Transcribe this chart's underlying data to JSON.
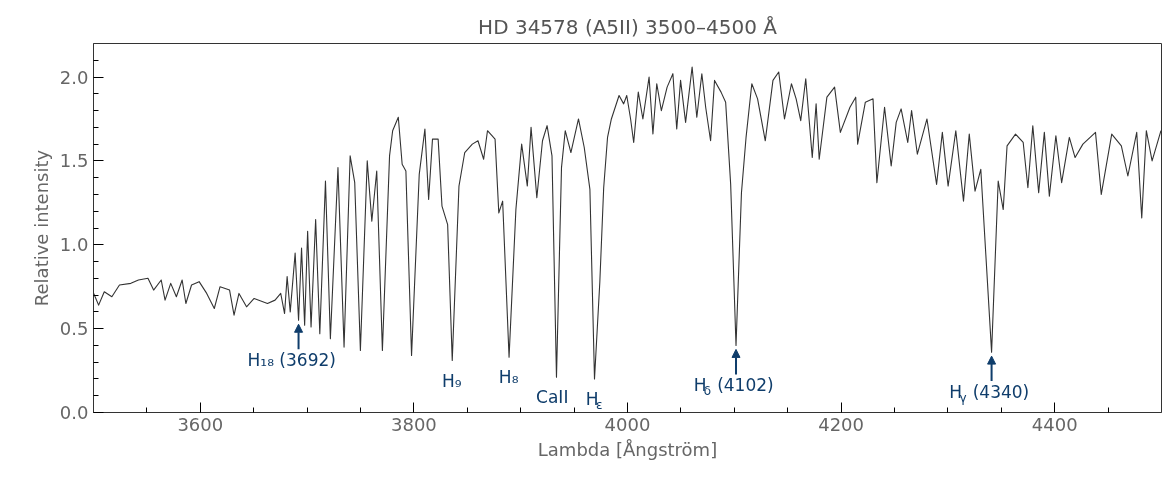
{
  "chart_data": {
    "type": "line",
    "title": "HD 34578 (A5II) 3500–4500 Å",
    "xlabel": "Lambda [Ångström]",
    "ylabel": "Relative intensity",
    "xlim": [
      3500,
      4500
    ],
    "ylim": [
      0,
      2.2
    ],
    "xticks": [
      {
        "value": 3550,
        "label": null
      },
      3600,
      {
        "value": 3650,
        "label": null
      },
      {
        "value": 3700,
        "label": null
      },
      {
        "value": 3750,
        "label": null
      },
      3800,
      {
        "value": 3850,
        "label": null
      },
      {
        "value": 3900,
        "label": null
      },
      {
        "value": 3950,
        "label": null
      },
      4000,
      {
        "value": 4050,
        "label": null
      },
      {
        "value": 4100,
        "label": null
      },
      {
        "value": 4150,
        "label": null
      },
      4200,
      {
        "value": 4250,
        "label": null
      },
      {
        "value": 4300,
        "label": null
      },
      {
        "value": 4350,
        "label": null
      },
      4400,
      {
        "value": 4450,
        "label": null
      }
    ],
    "yticks": [
      {
        "value": 0,
        "label": "0.0"
      },
      {
        "value": 0.1,
        "label": null
      },
      {
        "value": 0.2,
        "label": null
      },
      {
        "value": 0.3,
        "label": null
      },
      {
        "value": 0.4,
        "label": null
      },
      0.5,
      {
        "value": 0.6,
        "label": null
      },
      {
        "value": 0.7,
        "label": null
      },
      {
        "value": 0.8,
        "label": null
      },
      {
        "value": 0.9,
        "label": null
      },
      {
        "value": 1,
        "label": "1.0"
      },
      {
        "value": 1.1,
        "label": null
      },
      {
        "value": 1.2,
        "label": null
      },
      {
        "value": 1.3,
        "label": null
      },
      {
        "value": 1.4,
        "label": null
      },
      1.5,
      {
        "value": 1.6,
        "label": null
      },
      {
        "value": 1.7,
        "label": null
      },
      {
        "value": 1.8,
        "label": null
      },
      {
        "value": 1.9,
        "label": null
      },
      {
        "value": 2,
        "label": "2.0"
      },
      {
        "value": 2.1,
        "label": null
      }
    ],
    "grid": false,
    "marker": "none",
    "line_style": "solid",
    "series": [
      {
        "color": "#333333",
        "x": [
          3500.2,
          3504.8,
          3510.1,
          3517.2,
          3524.3,
          3535.0,
          3542.1,
          3551.0,
          3556.3,
          3563.4,
          3567.0,
          3572.3,
          3577.6,
          3583.0,
          3586.5,
          3591.8,
          3598.9,
          3606.0,
          3613.1,
          3618.5,
          3627.4,
          3631.6,
          3636.2,
          3643.3,
          3650.4,
          3662.9,
          3670.0,
          3675.3,
          3678.9,
          3681.3,
          3684.2,
          3688.8,
          3692.0,
          3694.8,
          3697.7,
          3700.5,
          3703.7,
          3708.0,
          3711.9,
          3717.2,
          3721.8,
          3728.9,
          3734.6,
          3740.3,
          3744.6,
          3749.9,
          3756.3,
          3760.6,
          3765.2,
          3770.5,
          3777.2,
          3780.1,
          3785.4,
          3789.0,
          3792.5,
          3797.8,
          3805.0,
          3810.3,
          3813.8,
          3817.4,
          3822.7,
          3826.3,
          3831.6,
          3835.9,
          3842.2,
          3847.6,
          3854.7,
          3860.0,
          3865.3,
          3868.9,
          3876.0,
          3879.5,
          3883.1,
          3889.1,
          3895.5,
          3900.9,
          3906.2,
          3909.7,
          3915.1,
          3920.4,
          3924.7,
          3929.3,
          3933.5,
          3938.2,
          3941.7,
          3947.0,
          3954.1,
          3959.5,
          3964.8,
          3969.1,
          3974.1,
          3977.7,
          3981.3,
          3984.9,
          3988.5,
          3992.1,
          3996.4,
          3999.3,
          4002.9,
          4005.8,
          4010.1,
          4014.4,
          4020.2,
          4023.8,
          4027.4,
          4031.7,
          4037.1,
          4042.5,
          4046.1,
          4049.7,
          4054.4,
          4060.5,
          4064.9,
          4069.6,
          4073.2,
          4077.8,
          4081.5,
          4087.6,
          4091.9,
          4096.6,
          4101.6,
          4106.7,
          4111.0,
          4116.4,
          4121.8,
          4129.0,
          4136.2,
          4141.6,
          4147.0,
          4153.5,
          4157.9,
          4162.2,
          4166.9,
          4173.0,
          4176.6,
          4179.5,
          4186.7,
          4193.9,
          4199.3,
          4208.3,
          4213.7,
          4215.5,
          4222.7,
          4229.9,
          4233.5,
          4240.7,
          4246.9,
          4251.6,
          4256.2,
          4262.4,
          4266.0,
          4271.4,
          4280.4,
          4289.4,
          4294.8,
          4300.2,
          4307.4,
          4314.6,
          4320.0,
          4325.4,
          4330.8,
          4340.9,
          4347.1,
          4351.8,
          4355.4,
          4363.3,
          4370.5,
          4374.9,
          4379.5,
          4385.0,
          4390.3,
          4395.0,
          4401.1,
          4406.5,
          4413.7,
          4419.1,
          4426.4,
          4438.2,
          4443.6,
          4453.4,
          4462.4,
          4468.5,
          4476.8,
          4481.5,
          4485.8,
          4491.2,
          4499.5
        ],
        "values": [
          0.71,
          0.64,
          0.72,
          0.69,
          0.76,
          0.77,
          0.79,
          0.8,
          0.73,
          0.79,
          0.67,
          0.77,
          0.69,
          0.79,
          0.65,
          0.76,
          0.78,
          0.71,
          0.62,
          0.75,
          0.73,
          0.58,
          0.71,
          0.63,
          0.68,
          0.65,
          0.67,
          0.71,
          0.59,
          0.81,
          0.6,
          0.95,
          0.55,
          0.98,
          0.52,
          1.08,
          0.51,
          1.15,
          0.47,
          1.38,
          0.44,
          1.46,
          0.39,
          1.53,
          1.37,
          0.37,
          1.5,
          1.14,
          1.44,
          0.37,
          1.53,
          1.68,
          1.76,
          1.48,
          1.44,
          0.34,
          1.42,
          1.69,
          1.27,
          1.63,
          1.63,
          1.23,
          1.12,
          0.31,
          1.35,
          1.55,
          1.6,
          1.62,
          1.51,
          1.68,
          1.63,
          1.19,
          1.26,
          0.33,
          1.21,
          1.6,
          1.35,
          1.7,
          1.28,
          1.62,
          1.71,
          1.53,
          0.21,
          1.46,
          1.68,
          1.55,
          1.75,
          1.58,
          1.33,
          0.2,
          0.78,
          1.34,
          1.64,
          1.75,
          1.82,
          1.89,
          1.84,
          1.89,
          1.75,
          1.61,
          1.91,
          1.75,
          2.0,
          1.66,
          1.96,
          1.8,
          1.94,
          2.02,
          1.69,
          1.98,
          1.73,
          2.06,
          1.76,
          2.02,
          1.82,
          1.62,
          1.98,
          1.91,
          1.85,
          1.36,
          0.4,
          1.31,
          1.64,
          1.96,
          1.87,
          1.62,
          1.98,
          2.03,
          1.75,
          1.96,
          1.87,
          1.74,
          1.99,
          1.52,
          1.84,
          1.51,
          1.88,
          1.94,
          1.67,
          1.82,
          1.88,
          1.6,
          1.85,
          1.87,
          1.37,
          1.82,
          1.47,
          1.73,
          1.81,
          1.61,
          1.8,
          1.54,
          1.75,
          1.36,
          1.67,
          1.35,
          1.68,
          1.26,
          1.66,
          1.32,
          1.45,
          0.36,
          1.38,
          1.21,
          1.59,
          1.66,
          1.61,
          1.34,
          1.71,
          1.31,
          1.67,
          1.29,
          1.65,
          1.37,
          1.64,
          1.52,
          1.6,
          1.67,
          1.3,
          1.66,
          1.59,
          1.41,
          1.67,
          1.16,
          1.68,
          1.5,
          1.68
        ]
      }
    ],
    "annotations": [
      {
        "text": "H₁₈ (3692)",
        "x": 3692.0,
        "y": 0.55
      },
      {
        "text": "H₉",
        "x": 3835.9,
        "y": 0.31
      },
      {
        "text": "H₈",
        "x": 3889.1,
        "y": 0.33
      },
      {
        "text": "CaII",
        "x": 3933.5,
        "y": 0.21
      },
      {
        "text": "H$_{ε}$",
        "x": 3969.1,
        "y": 0.2
      },
      {
        "text": "H$_{δ}$ (4102)",
        "x": 4101.6,
        "y": 0.4
      },
      {
        "text": "H$_{γ}$ (4340)",
        "x": 4340.9,
        "y": 0.36
      }
    ]
  }
}
